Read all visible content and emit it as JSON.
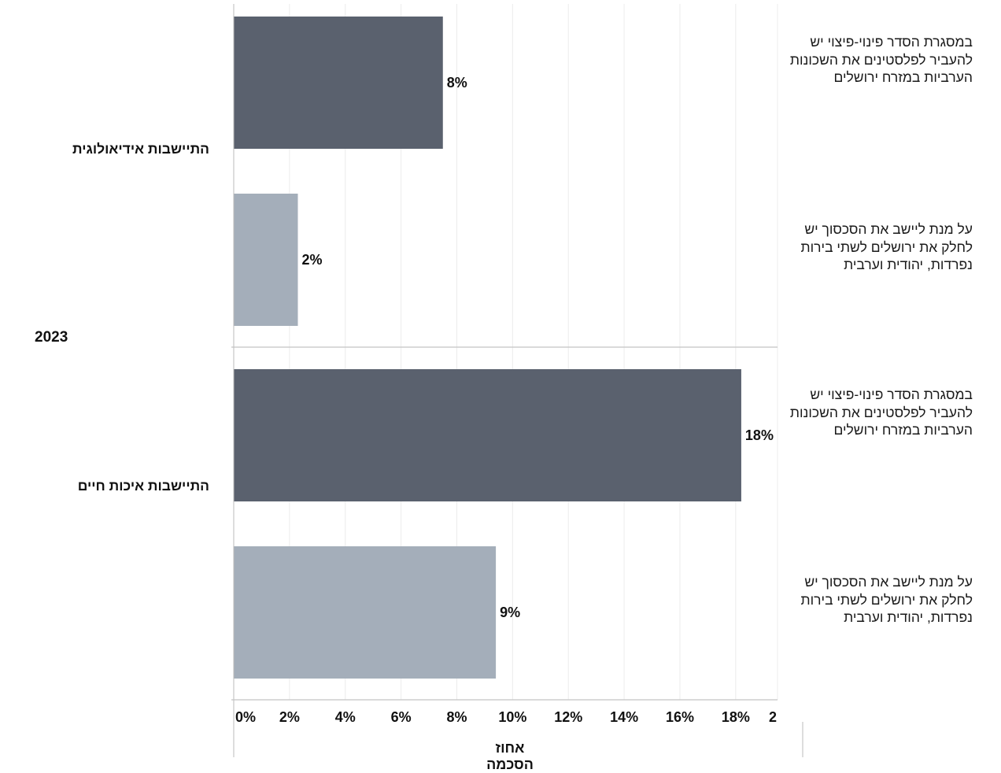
{
  "chart_data": {
    "type": "bar",
    "orientation": "horizontal",
    "year_label": "2023",
    "xlabel": "אחוז הסכמה",
    "xlim": [
      0,
      19.5
    ],
    "x_ticks": [
      "0%",
      "2%",
      "4%",
      "6%",
      "8%",
      "10%",
      "12%",
      "14%",
      "16%",
      "18%",
      "2"
    ],
    "x_tick_values": [
      0,
      2,
      4,
      6,
      8,
      10,
      12,
      14,
      16,
      18,
      19.5
    ],
    "grid": true,
    "colors": {
      "dark": "#5a616e",
      "light": "#a4aeba"
    },
    "groups": [
      {
        "label": "התיישבות אידיאולוגית",
        "bars": [
          {
            "category": "במסגרת הסדר פינוי-פיצוי יש להעביר לפלסטינים את השכונות הערביות במזרח ירושלים",
            "value": 7.5,
            "data_label": "8%",
            "color": "dark"
          },
          {
            "category": "על מנת ליישב את הסכסוך יש לחלק את ירושלים לשתי בירות נפרדות, יהודית וערבית",
            "value": 2.3,
            "data_label": "2%",
            "color": "light"
          }
        ]
      },
      {
        "label": "התיישבות איכות חיים",
        "bars": [
          {
            "category": "במסגרת הסדר פינוי-פיצוי יש להעביר לפלסטינים את השכונות הערביות במזרח ירושלים",
            "value": 18.2,
            "data_label": "18%",
            "color": "dark"
          },
          {
            "category": "על מנת ליישב את הסכסוך יש לחלק את ירושלים לשתי בירות נפרדות, יהודית וערבית",
            "value": 9.4,
            "data_label": "9%",
            "color": "light"
          }
        ]
      }
    ]
  }
}
